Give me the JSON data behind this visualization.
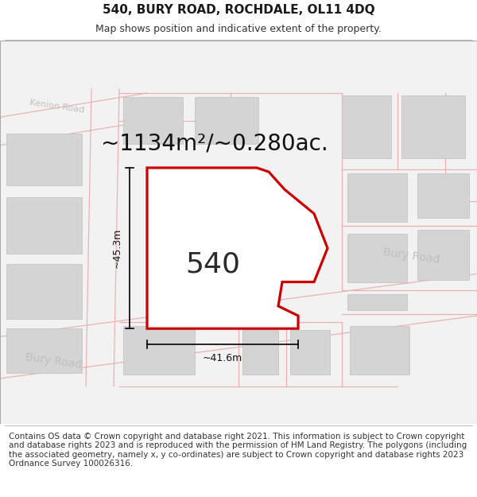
{
  "title": "540, BURY ROAD, ROCHDALE, OL11 4DQ",
  "subtitle": "Map shows position and indicative extent of the property.",
  "footer": "Contains OS data © Crown copyright and database right 2021. This information is subject to Crown copyright and database rights 2023 and is reproduced with the permission of HM Land Registry. The polygons (including the associated geometry, namely x, y co-ordinates) are subject to Crown copyright and database rights 2023 Ordnance Survey 100026316.",
  "area_label": "~1134m²/~0.280ac.",
  "number_label": "540",
  "dim_v": "~45.3m",
  "dim_h": "~41.6m",
  "bg_color": "#f2f2f2",
  "plot_fill": "#ffffff",
  "plot_edge": "#cc0000",
  "building_fill": "#d4d4d4",
  "building_edge": "#c0c0c0",
  "road_pink": "#e8b0b0",
  "road_label_color": "#cccccc",
  "kenion_road_label": "Kenion Road",
  "bury_road_labels": [
    "Bury Road",
    "Bury Road",
    "Bury Road"
  ],
  "title_fontsize": 11,
  "subtitle_fontsize": 9,
  "footer_fontsize": 7.5,
  "area_fontsize": 20,
  "number_fontsize": 26,
  "dim_fontsize": 9
}
